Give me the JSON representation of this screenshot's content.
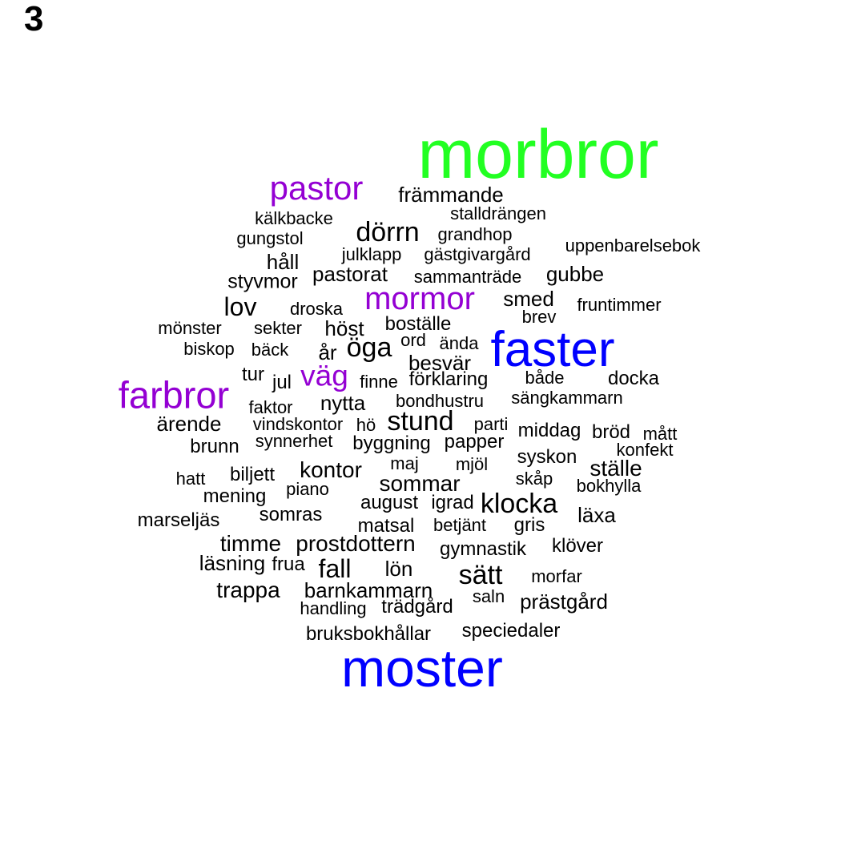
{
  "panel_label": "3",
  "colors": {
    "green": "#22ff22",
    "blue": "#0000ff",
    "purple": "#9400d3",
    "black": "#000000"
  },
  "words": [
    {
      "text": "morbror",
      "color": "green"
    },
    {
      "text": "faster",
      "color": "blue"
    },
    {
      "text": "moster",
      "color": "blue"
    },
    {
      "text": "farbror",
      "color": "purple"
    },
    {
      "text": "pastor",
      "color": "purple"
    },
    {
      "text": "mormor",
      "color": "purple"
    },
    {
      "text": "väg",
      "color": "purple"
    },
    {
      "text": "främmande",
      "color": "black"
    },
    {
      "text": "stalldrängen",
      "color": "black"
    },
    {
      "text": "kälkbacke",
      "color": "black"
    },
    {
      "text": "dörrn",
      "color": "black"
    },
    {
      "text": "grandhop",
      "color": "black"
    },
    {
      "text": "gungstol",
      "color": "black"
    },
    {
      "text": "uppenbarelsebok",
      "color": "black"
    },
    {
      "text": "julklapp",
      "color": "black"
    },
    {
      "text": "gästgivargård",
      "color": "black"
    },
    {
      "text": "håll",
      "color": "black"
    },
    {
      "text": "pastorat",
      "color": "black"
    },
    {
      "text": "gubbe",
      "color": "black"
    },
    {
      "text": "sammanträde",
      "color": "black"
    },
    {
      "text": "styvmor",
      "color": "black"
    },
    {
      "text": "smed",
      "color": "black"
    },
    {
      "text": "lov",
      "color": "black"
    },
    {
      "text": "fruntimmer",
      "color": "black"
    },
    {
      "text": "droska",
      "color": "black"
    },
    {
      "text": "brev",
      "color": "black"
    },
    {
      "text": "ställe",
      "color": "black"
    },
    {
      "text": "boställe",
      "color": "black"
    },
    {
      "text": "mönster",
      "color": "black"
    },
    {
      "text": "sekter",
      "color": "black"
    },
    {
      "text": "höst",
      "color": "black"
    },
    {
      "text": "ord",
      "color": "black"
    },
    {
      "text": "ända",
      "color": "black"
    },
    {
      "text": "öga",
      "color": "black"
    },
    {
      "text": "biskop",
      "color": "black"
    },
    {
      "text": "bäck",
      "color": "black"
    },
    {
      "text": "år",
      "color": "black"
    },
    {
      "text": "besvär",
      "color": "black"
    },
    {
      "text": "tur",
      "color": "black"
    },
    {
      "text": "jul",
      "color": "black"
    },
    {
      "text": "finne",
      "color": "black"
    },
    {
      "text": "förklaring",
      "color": "black"
    },
    {
      "text": "både",
      "color": "black"
    },
    {
      "text": "docka",
      "color": "black"
    },
    {
      "text": "faktor",
      "color": "black"
    },
    {
      "text": "nytta",
      "color": "black"
    },
    {
      "text": "bondhustru",
      "color": "black"
    },
    {
      "text": "sängkammarn",
      "color": "black"
    },
    {
      "text": "ärende",
      "color": "black"
    },
    {
      "text": "vindskontor",
      "color": "black"
    },
    {
      "text": "hö",
      "color": "black"
    },
    {
      "text": "stund",
      "color": "black"
    },
    {
      "text": "parti",
      "color": "black"
    },
    {
      "text": "middag",
      "color": "black"
    },
    {
      "text": "bröd",
      "color": "black"
    },
    {
      "text": "mått",
      "color": "black"
    },
    {
      "text": "brunn",
      "color": "black"
    },
    {
      "text": "synnerhet",
      "color": "black"
    },
    {
      "text": "byggning",
      "color": "black"
    },
    {
      "text": "papper",
      "color": "black"
    },
    {
      "text": "konfekt",
      "color": "black"
    },
    {
      "text": "syskon",
      "color": "black"
    },
    {
      "text": "maj",
      "color": "black"
    },
    {
      "text": "mjöl",
      "color": "black"
    },
    {
      "text": "hatt",
      "color": "black"
    },
    {
      "text": "biljett",
      "color": "black"
    },
    {
      "text": "kontor",
      "color": "black"
    },
    {
      "text": "skåp",
      "color": "black"
    },
    {
      "text": "bokhylla",
      "color": "black"
    },
    {
      "text": "sommar",
      "color": "black"
    },
    {
      "text": "mening",
      "color": "black"
    },
    {
      "text": "piano",
      "color": "black"
    },
    {
      "text": "august",
      "color": "black"
    },
    {
      "text": "igrad",
      "color": "black"
    },
    {
      "text": "klocka",
      "color": "black"
    },
    {
      "text": "läxa",
      "color": "black"
    },
    {
      "text": "marseljäs",
      "color": "black"
    },
    {
      "text": "somras",
      "color": "black"
    },
    {
      "text": "matsal",
      "color": "black"
    },
    {
      "text": "betjänt",
      "color": "black"
    },
    {
      "text": "gris",
      "color": "black"
    },
    {
      "text": "timme",
      "color": "black"
    },
    {
      "text": "prostdottern",
      "color": "black"
    },
    {
      "text": "gymnastik",
      "color": "black"
    },
    {
      "text": "klöver",
      "color": "black"
    },
    {
      "text": "läsning",
      "color": "black"
    },
    {
      "text": "frua",
      "color": "black"
    },
    {
      "text": "fall",
      "color": "black"
    },
    {
      "text": "lön",
      "color": "black"
    },
    {
      "text": "sätt",
      "color": "black"
    },
    {
      "text": "morfar",
      "color": "black"
    },
    {
      "text": "trappa",
      "color": "black"
    },
    {
      "text": "barnkammarn",
      "color": "black"
    },
    {
      "text": "saln",
      "color": "black"
    },
    {
      "text": "prästgård",
      "color": "black"
    },
    {
      "text": "handling",
      "color": "black"
    },
    {
      "text": "trädgård",
      "color": "black"
    },
    {
      "text": "bruksbokhållar",
      "color": "black"
    },
    {
      "text": "speciedaler",
      "color": "black"
    }
  ]
}
